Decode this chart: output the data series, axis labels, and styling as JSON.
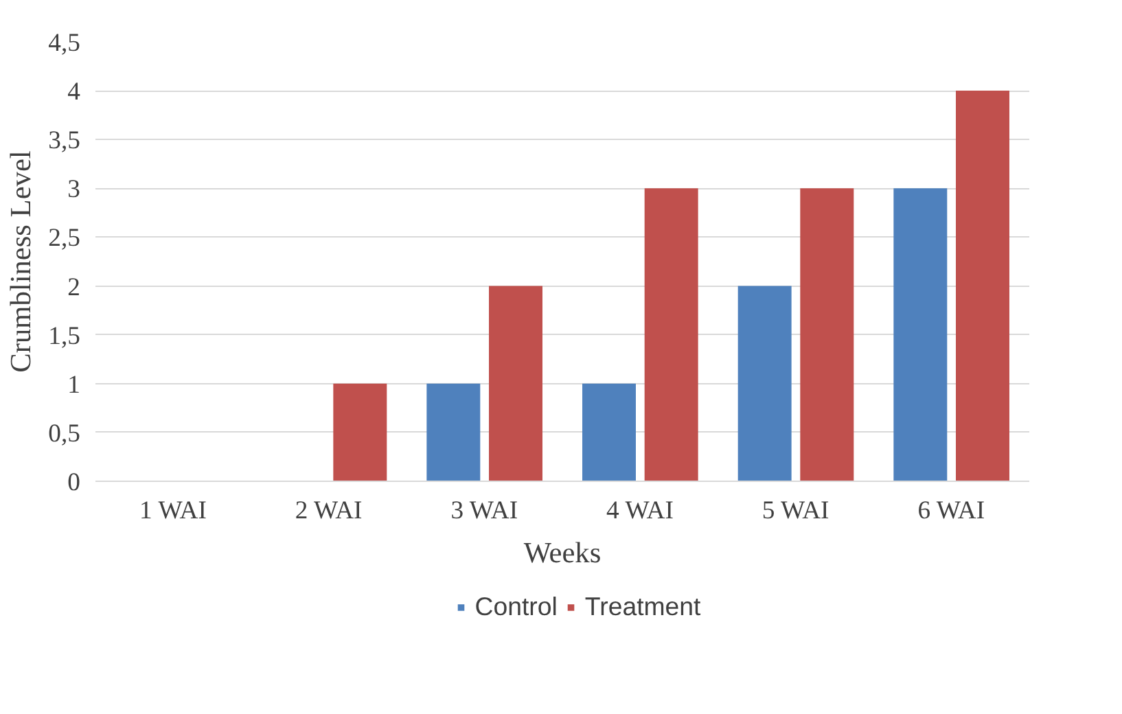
{
  "chart_data": {
    "type": "bar",
    "xlabel": "Weeks",
    "ylabel": "Crumbliness Level",
    "categories": [
      "1 WAI",
      "2 WAI",
      "3 WAI",
      "4 WAI",
      "5 WAI",
      "6 WAI"
    ],
    "series": [
      {
        "name": "Control",
        "color": "#4f81bd",
        "values": [
          0,
          0,
          1,
          1,
          2,
          3
        ]
      },
      {
        "name": "Treatment",
        "color": "#c0504d",
        "values": [
          0,
          1,
          2,
          3,
          3,
          4
        ]
      }
    ],
    "ylim": [
      0,
      4.5
    ],
    "yticks": [
      0,
      {
        "value": 0.5,
        "label": "0,5"
      },
      1,
      {
        "value": 1.5,
        "label": "1,5"
      },
      2,
      {
        "value": 2.5,
        "label": "2,5"
      },
      3,
      {
        "value": 3.5,
        "label": "3,5"
      },
      4,
      {
        "value": 4.5,
        "label": "4,5"
      }
    ],
    "grid": "y",
    "legend": "bottom"
  }
}
